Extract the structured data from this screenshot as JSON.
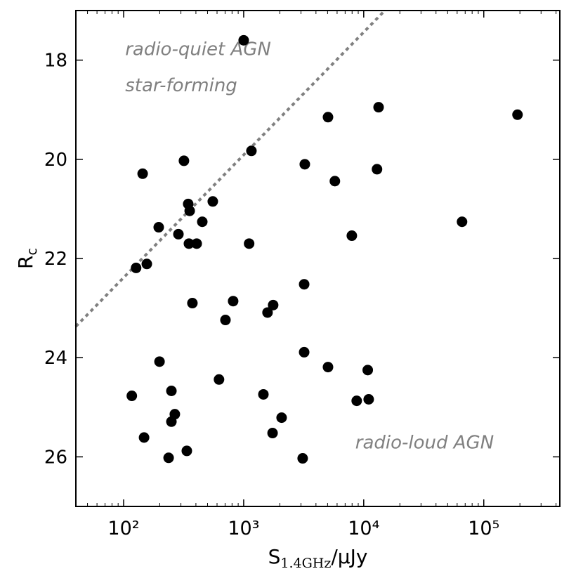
{
  "chart_data": {
    "type": "scatter",
    "xlabel": [
      "S",
      "1.4GHz",
      "/μJy"
    ],
    "ylabel": [
      "R",
      "c"
    ],
    "xlog": true,
    "xlim": [
      40,
      430000
    ],
    "ylim": [
      27,
      17
    ],
    "xticks": [
      {
        "value": 100,
        "label": "10²"
      },
      {
        "value": 1000,
        "label": "10³"
      },
      {
        "value": 10000,
        "label": "10⁴"
      },
      {
        "value": 100000,
        "label": "10⁵"
      }
    ],
    "xticks_minor": [
      50,
      60,
      70,
      80,
      90,
      200,
      300,
      400,
      500,
      600,
      700,
      800,
      900,
      2000,
      3000,
      4000,
      5000,
      6000,
      7000,
      8000,
      9000,
      20000,
      30000,
      40000,
      50000,
      60000,
      70000,
      80000,
      90000,
      200000,
      300000,
      400000
    ],
    "yticks": [
      18,
      20,
      22,
      24,
      26
    ],
    "color": "#000000",
    "x": [
      1000,
      5040,
      13300,
      191000,
      1160,
      318,
      3230,
      12900,
      144,
      5750,
      345,
      553,
      355,
      452,
      196,
      65900,
      286,
      7960,
      350,
      406,
      1110,
      156,
      127,
      3190,
      374,
      817,
      1760,
      1580,
      705,
      3190,
      199,
      5040,
      10800,
      623,
      250,
      117,
      1460,
      8740,
      11000,
      267,
      250,
      2070,
      1740,
      148,
      336,
      237,
      3100
    ],
    "values": [
      17.6,
      19.15,
      18.95,
      19.1,
      19.83,
      20.03,
      20.1,
      20.2,
      20.29,
      20.44,
      20.9,
      20.85,
      21.04,
      21.26,
      21.37,
      21.26,
      21.51,
      21.54,
      21.7,
      21.7,
      21.7,
      22.11,
      22.19,
      22.52,
      22.9,
      22.86,
      22.94,
      23.09,
      23.24,
      23.89,
      24.08,
      24.19,
      24.25,
      24.44,
      24.67,
      24.77,
      24.74,
      24.87,
      24.84,
      25.14,
      25.29,
      25.21,
      25.52,
      25.61,
      25.88,
      26.02,
      26.03
    ],
    "divider": {
      "color": "#808080",
      "x": [
        40,
        15000
      ],
      "values": [
        23.37,
        17.0
      ]
    },
    "annotations": [
      {
        "text": "radio-quiet AGN",
        "x": 103,
        "y": 17.9
      },
      {
        "text": "star-forming",
        "x": 103,
        "y": 18.63
      },
      {
        "text": "radio-loud AGN",
        "x": 8500,
        "y": 25.83
      }
    ]
  }
}
